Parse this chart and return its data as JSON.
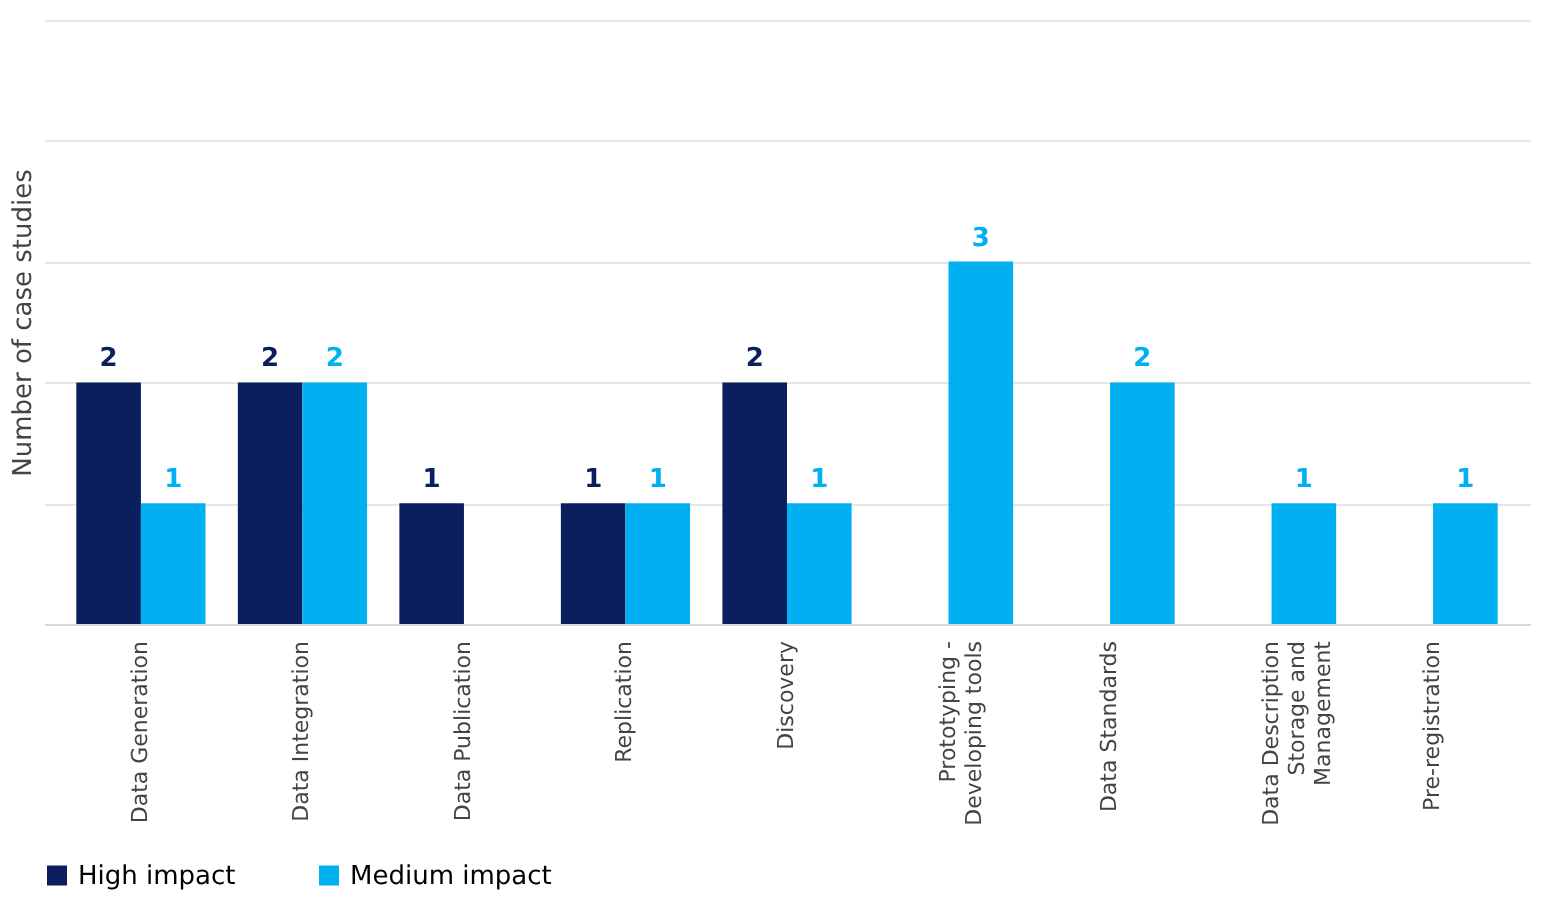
{
  "chart_data": {
    "type": "bar",
    "ylabel": "Number of case studies",
    "categories": [
      "Data Generation",
      "Data Integration",
      "Data Publication",
      "Replication",
      "Discovery",
      "Prototyping - Developing tools",
      "Data Standards",
      "Data Description Storage and Management",
      "Pre-registration"
    ],
    "series": [
      {
        "name": "High impact",
        "color": "#0b1f5e",
        "values": [
          2,
          2,
          1,
          1,
          2,
          null,
          null,
          null,
          null
        ]
      },
      {
        "name": "Medium impact",
        "color": "#00b0f0",
        "values": [
          1,
          2,
          null,
          1,
          1,
          3,
          2,
          1,
          1
        ]
      }
    ],
    "ylim": [
      0,
      5
    ],
    "yticks": [
      0,
      1,
      2,
      3,
      4,
      5
    ],
    "tick_labels": "x",
    "grid": "y",
    "data_labels": true,
    "legend": "bottom"
  }
}
